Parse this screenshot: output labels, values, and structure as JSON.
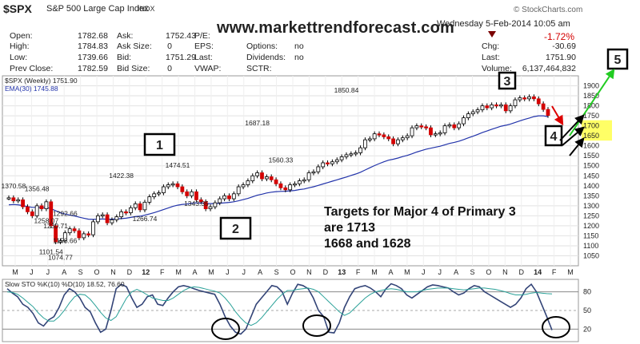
{
  "header": {
    "symbol": "$SPX",
    "name": "S&P 500 Large Cap Index",
    "exchange": "INDX",
    "site": "www.markettrendforecast.com",
    "date": "Wednesday  5-Feb-2014  10:05 am",
    "source": "© StockCharts.com",
    "pct_change": "-1.72%",
    "colors": {
      "down": "#d40000",
      "arrow": "#7a0000"
    }
  },
  "quote": [
    {
      "label": "Open:",
      "value": "1782.68"
    },
    {
      "label": "High:",
      "value": "1784.83"
    },
    {
      "label": "Low:",
      "value": "1739.66"
    },
    {
      "label": "Prev Close:",
      "value": "1782.59"
    },
    {
      "label": "Ask:",
      "value": "1752.43"
    },
    {
      "label": "Ask Size:",
      "value": "0"
    },
    {
      "label": "Bid:",
      "value": "1751.29"
    },
    {
      "label": "Bid Size:",
      "value": "0"
    },
    {
      "label": "P/E:",
      "value": ""
    },
    {
      "label": "EPS:",
      "value": ""
    },
    {
      "label": "Last:",
      "value": ""
    },
    {
      "label": "VWAP:",
      "value": ""
    },
    {
      "label": "Options:",
      "value": "no"
    },
    {
      "label": "Dividends:",
      "value": "no"
    },
    {
      "label": "SCTR:",
      "value": ""
    },
    {
      "label": "Chg:",
      "value": "-30.69"
    },
    {
      "label": "Last:",
      "value": "1751.90"
    },
    {
      "label": "Volume:",
      "value": "6,137,464,832"
    }
  ],
  "chart_data": [
    {
      "type": "line",
      "title": "$SPX (Weekly) 1751.90",
      "legend": [
        "$SPX (Weekly) 1751.90",
        "EMA(30) 1745.88"
      ],
      "ylim": [
        1000,
        1950
      ],
      "yticks": [
        1050,
        1100,
        1150,
        1200,
        1250,
        1300,
        1350,
        1400,
        1450,
        1500,
        1550,
        1600,
        1650,
        1700,
        1750,
        1800,
        1850,
        1900
      ],
      "xticks": [
        "M",
        "J",
        "J",
        "A",
        "S",
        "O",
        "N",
        "D",
        "12",
        "F",
        "M",
        "A",
        "M",
        "J",
        "J",
        "A",
        "S",
        "O",
        "N",
        "D",
        "13",
        "F",
        "M",
        "A",
        "M",
        "J",
        "J",
        "A",
        "S",
        "O",
        "N",
        "D",
        "14",
        "F",
        "M"
      ],
      "series": [
        {
          "name": "$SPX (Weekly) 1751.90",
          "color": "#d40000",
          "values": [
            1340,
            1325,
            1330,
            1295,
            1270,
            1250,
            1300,
            1285,
            1320,
            1200,
            1120,
            1125,
            1165,
            1185,
            1175,
            1140,
            1160,
            1155,
            1220,
            1250,
            1255,
            1215,
            1230,
            1245,
            1270,
            1265,
            1290,
            1310,
            1280,
            1318,
            1345,
            1360,
            1365,
            1395,
            1405,
            1410,
            1395,
            1370,
            1350,
            1370,
            1330,
            1320,
            1285,
            1295,
            1315,
            1335,
            1350,
            1335,
            1360,
            1395,
            1405,
            1425,
            1450,
            1465,
            1435,
            1445,
            1430,
            1410,
            1390,
            1380,
            1405,
            1410,
            1425,
            1430,
            1465,
            1470,
            1495,
            1515,
            1510,
            1520,
            1530,
            1545,
            1555,
            1560,
            1565,
            1590,
            1630,
            1635,
            1660,
            1655,
            1645,
            1635,
            1610,
            1630,
            1640,
            1650,
            1690,
            1700,
            1695,
            1690,
            1655,
            1660,
            1665,
            1700,
            1705,
            1690,
            1710,
            1740,
            1760,
            1770,
            1780,
            1800,
            1790,
            1805,
            1800,
            1805,
            1775,
            1800,
            1830,
            1840,
            1835,
            1845,
            1835,
            1810,
            1782,
            1751.9
          ]
        },
        {
          "name": "EMA(30) 1745.88",
          "color": "#2233aa",
          "values": [
            1305,
            1306,
            1305,
            1301,
            1296,
            1292,
            1292,
            1291,
            1292,
            1286,
            1275,
            1265,
            1259,
            1254,
            1249,
            1243,
            1238,
            1233,
            1232,
            1233,
            1234,
            1233,
            1233,
            1234,
            1236,
            1238,
            1242,
            1246,
            1248,
            1253,
            1259,
            1266,
            1273,
            1281,
            1289,
            1297,
            1303,
            1307,
            1309,
            1313,
            1314,
            1314,
            1312,
            1311,
            1311,
            1313,
            1315,
            1317,
            1320,
            1325,
            1331,
            1337,
            1345,
            1353,
            1358,
            1364,
            1368,
            1371,
            1372,
            1373,
            1375,
            1377,
            1381,
            1384,
            1390,
            1395,
            1402,
            1409,
            1416,
            1423,
            1430,
            1437,
            1444,
            1452,
            1459,
            1468,
            1479,
            1490,
            1501,
            1511,
            1520,
            1528,
            1533,
            1539,
            1546,
            1552,
            1560,
            1569,
            1576,
            1583,
            1588,
            1593,
            1598,
            1605,
            1612,
            1617,
            1623,
            1631,
            1640,
            1648,
            1657,
            1666,
            1674,
            1683,
            1690,
            1698,
            1703,
            1709,
            1717,
            1725,
            1732,
            1739,
            1746,
            1750,
            1750,
            1745.88
          ]
        }
      ],
      "annotations": [
        {
          "text": "1370.58",
          "x": 1,
          "y": 1370.58
        },
        {
          "text": "1356.48",
          "x": 6,
          "y": 1356.48
        },
        {
          "text": "1258.07",
          "x": 8,
          "y": 1258.07
        },
        {
          "text": "1292.66",
          "x": 12,
          "y": 1292.66
        },
        {
          "text": "1230.71",
          "x": 10,
          "y": 1230.71
        },
        {
          "text": "1101.54",
          "x": 9,
          "y": 1101.54
        },
        {
          "text": "1158.66",
          "x": 12,
          "y": 1158.66
        },
        {
          "text": "1074.77",
          "x": 11,
          "y": 1074.77
        },
        {
          "text": "1422.38",
          "x": 24,
          "y": 1422.38
        },
        {
          "text": "1266.74",
          "x": 29,
          "y": 1266.74
        },
        {
          "text": "1474.51",
          "x": 36,
          "y": 1474.51
        },
        {
          "text": "1343.35",
          "x": 40,
          "y": 1343.35
        },
        {
          "text": "1687.18",
          "x": 53,
          "y": 1687.18
        },
        {
          "text": "1560.33",
          "x": 58,
          "y": 1560.33
        },
        {
          "text": "1850.84",
          "x": 72,
          "y": 1850.84
        }
      ]
    },
    {
      "type": "line",
      "title": "Slow STO %K(10) %D(10) 18.52, 76.60",
      "legend": [
        "Slow STO %K(10) %D(10) 18.52, 76.60"
      ],
      "ylim": [
        0,
        100
      ],
      "yticks": [
        20,
        50,
        80
      ],
      "series": [
        {
          "name": "%K(10)",
          "color": "#334477",
          "values": [
            85,
            78,
            72,
            60,
            55,
            45,
            30,
            25,
            35,
            40,
            55,
            75,
            85,
            80,
            70,
            55,
            48,
            30,
            15,
            20,
            50,
            85,
            92,
            88,
            70,
            55,
            60,
            72,
            75,
            60,
            58,
            70,
            80,
            88,
            90,
            88,
            85,
            82,
            80,
            78,
            76,
            60,
            40,
            25,
            15,
            12,
            20,
            40,
            60,
            70,
            80,
            90,
            88,
            80,
            60,
            78,
            92,
            90,
            85,
            70,
            50,
            40,
            15,
            14,
            30,
            55,
            72,
            85,
            88,
            90,
            86,
            80,
            72,
            85,
            93,
            90,
            85,
            75,
            70,
            76,
            82,
            88,
            91,
            90,
            88,
            86,
            80,
            75,
            78,
            85,
            90,
            88,
            80,
            75,
            70,
            65,
            60,
            55,
            60,
            70,
            85,
            92,
            80,
            60,
            40,
            18.52
          ]
        },
        {
          "name": "%D(10)",
          "color": "#2aa198",
          "values": [
            80,
            79,
            76,
            70,
            63,
            56,
            46,
            38,
            33,
            33,
            40,
            50,
            62,
            72,
            76,
            75,
            68,
            58,
            47,
            38,
            34,
            40,
            55,
            70,
            80,
            84,
            80,
            75,
            70,
            68,
            66,
            66,
            70,
            76,
            82,
            86,
            88,
            87,
            85,
            83,
            81,
            78,
            70,
            60,
            48,
            38,
            30,
            26,
            30,
            38,
            48,
            58,
            68,
            76,
            82,
            82,
            84,
            85,
            86,
            84,
            80,
            72,
            64,
            56,
            48,
            42,
            46,
            54,
            62,
            70,
            76,
            80,
            82,
            84,
            85,
            84,
            82,
            80,
            80,
            80,
            82,
            84,
            85,
            86,
            86,
            86,
            85,
            84,
            83,
            84,
            85,
            86,
            86,
            85,
            84,
            82,
            80,
            77,
            75,
            75,
            76,
            78,
            79,
            78,
            77,
            76.6
          ]
        }
      ]
    }
  ],
  "overlay": {
    "wave_labels": [
      "1",
      "2",
      "3",
      "4",
      "5"
    ],
    "targets_text": [
      "Targets for Major 4 of Primary 3",
      "are 1713",
      "1668 and 1628"
    ],
    "highlight_ticks": [
      "1700",
      "1650"
    ],
    "highlight_color": "#ffff66",
    "arrow_colors": {
      "down": "#dd0000",
      "up": "#22cc22",
      "black": "#000000"
    }
  }
}
